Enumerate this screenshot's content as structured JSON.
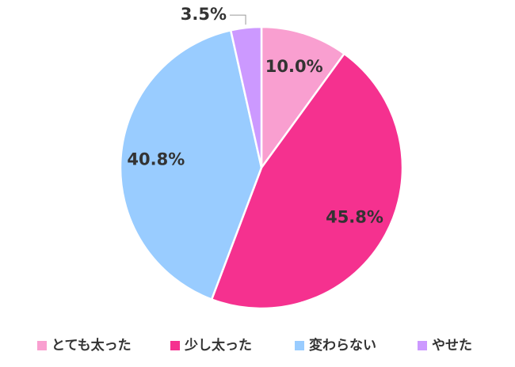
{
  "chart_data": {
    "type": "pie",
    "categories": [
      "とても太った",
      "少し太った",
      "変わらない",
      "やせた"
    ],
    "values": [
      10.0,
      45.8,
      40.8,
      3.5
    ],
    "value_labels": [
      "10.0%",
      "45.8%",
      "40.8%",
      "3.5%"
    ],
    "colors": [
      "#f99fd0",
      "#f5318f",
      "#99ccff",
      "#cc99ff"
    ],
    "legend": "bottom"
  }
}
